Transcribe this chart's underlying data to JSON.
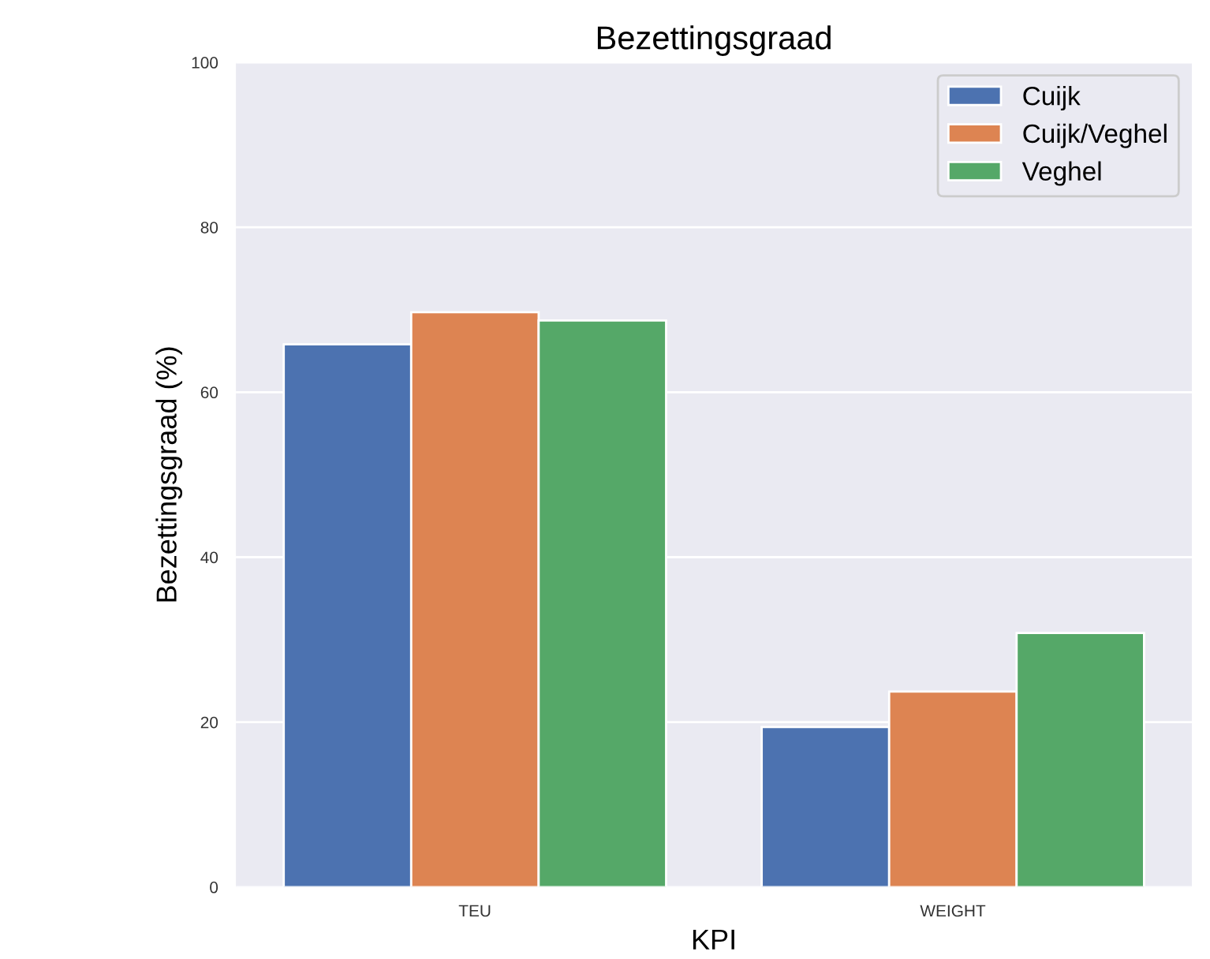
{
  "chart_data": {
    "type": "bar",
    "title": "Bezettingsgraad",
    "xlabel": "KPI",
    "ylabel": "Bezettingsgraad (%)",
    "categories": [
      "TEU",
      "WEIGHT"
    ],
    "series": [
      {
        "name": "Cuijk",
        "color": "#4c72b0",
        "values": [
          65.8,
          19.4
        ]
      },
      {
        "name": "Cuijk/Veghel",
        "color": "#dd8452",
        "values": [
          69.7,
          23.7
        ]
      },
      {
        "name": "Veghel",
        "color": "#55a868",
        "values": [
          68.7,
          30.8
        ]
      }
    ],
    "ylim": [
      0,
      100
    ],
    "yticks": [
      0,
      20,
      40,
      60,
      80,
      100
    ],
    "grid": "y",
    "legend": "top right"
  }
}
